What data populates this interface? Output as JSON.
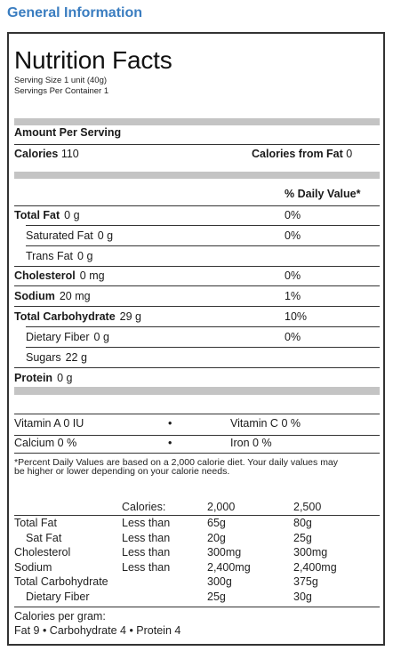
{
  "heading": "General Information",
  "label": {
    "title": "Nutrition Facts",
    "serving_size": "Serving Size  1 unit  (40g)",
    "servings_per_container": "Servings Per Container 1",
    "amount_per_serving": "Amount Per Serving",
    "calories_label": "Calories",
    "calories_value": "110",
    "calories_from_fat_label": "Calories from Fat",
    "calories_from_fat_value": "0",
    "daily_value_header": "% Daily Value*",
    "nutrients": [
      {
        "name": "Total Fat",
        "amount": "0 g",
        "dv": "0%",
        "bold": true,
        "indent": false
      },
      {
        "name": "Saturated Fat",
        "amount": "0 g",
        "dv": "0%",
        "bold": false,
        "indent": true
      },
      {
        "name": "Trans Fat",
        "amount": "0 g",
        "dv": "",
        "bold": false,
        "indent": true
      },
      {
        "name": "Cholesterol",
        "amount": "0 mg",
        "dv": "0%",
        "bold": true,
        "indent": false
      },
      {
        "name": "Sodium",
        "amount": "20 mg",
        "dv": "1%",
        "bold": true,
        "indent": false
      },
      {
        "name": "Total Carbohydrate",
        "amount": "29 g",
        "dv": "10%",
        "bold": true,
        "indent": false
      },
      {
        "name": "Dietary Fiber",
        "amount": "0 g",
        "dv": "0%",
        "bold": false,
        "indent": true
      },
      {
        "name": "Sugars",
        "amount": "22 g",
        "dv": "",
        "bold": false,
        "indent": true
      },
      {
        "name": "Protein",
        "amount": "0 g",
        "dv": "",
        "bold": true,
        "indent": false
      }
    ],
    "vitamins": [
      {
        "left_name": "Vitamin A",
        "left_value": "0 IU",
        "right_name": "Vitamin C",
        "right_value": "0 %"
      },
      {
        "left_name": "Calcium",
        "left_value": "0 %",
        "right_name": "Iron",
        "right_value": "0 %"
      }
    ],
    "bullet": "•",
    "footnote_line1": "*Percent Daily Values are based on a 2,000 calorie diet. Your daily values may",
    "footnote_line2": "be higher or lower depending on your calorie needs.",
    "dv_table": {
      "header": [
        "",
        "Calories:",
        "2,000",
        "2,500"
      ],
      "rows": [
        [
          "Total Fat",
          "Less than",
          "65g",
          "80g"
        ],
        [
          "Sat Fat",
          "Less than",
          "20g",
          "25g"
        ],
        [
          "Cholesterol",
          "Less than",
          "300mg",
          "300mg"
        ],
        [
          "Sodium",
          "Less than",
          "2,400mg",
          "2,400mg"
        ],
        [
          "Total Carbohydrate",
          "",
          "300g",
          "375g"
        ],
        [
          "Dietary Fiber",
          "",
          "25g",
          "30g"
        ]
      ]
    },
    "calories_per_gram_label": "Calories per gram:",
    "calories_per_gram": "Fat 9  •  Carbohydrate 4  •  Protein 4"
  }
}
